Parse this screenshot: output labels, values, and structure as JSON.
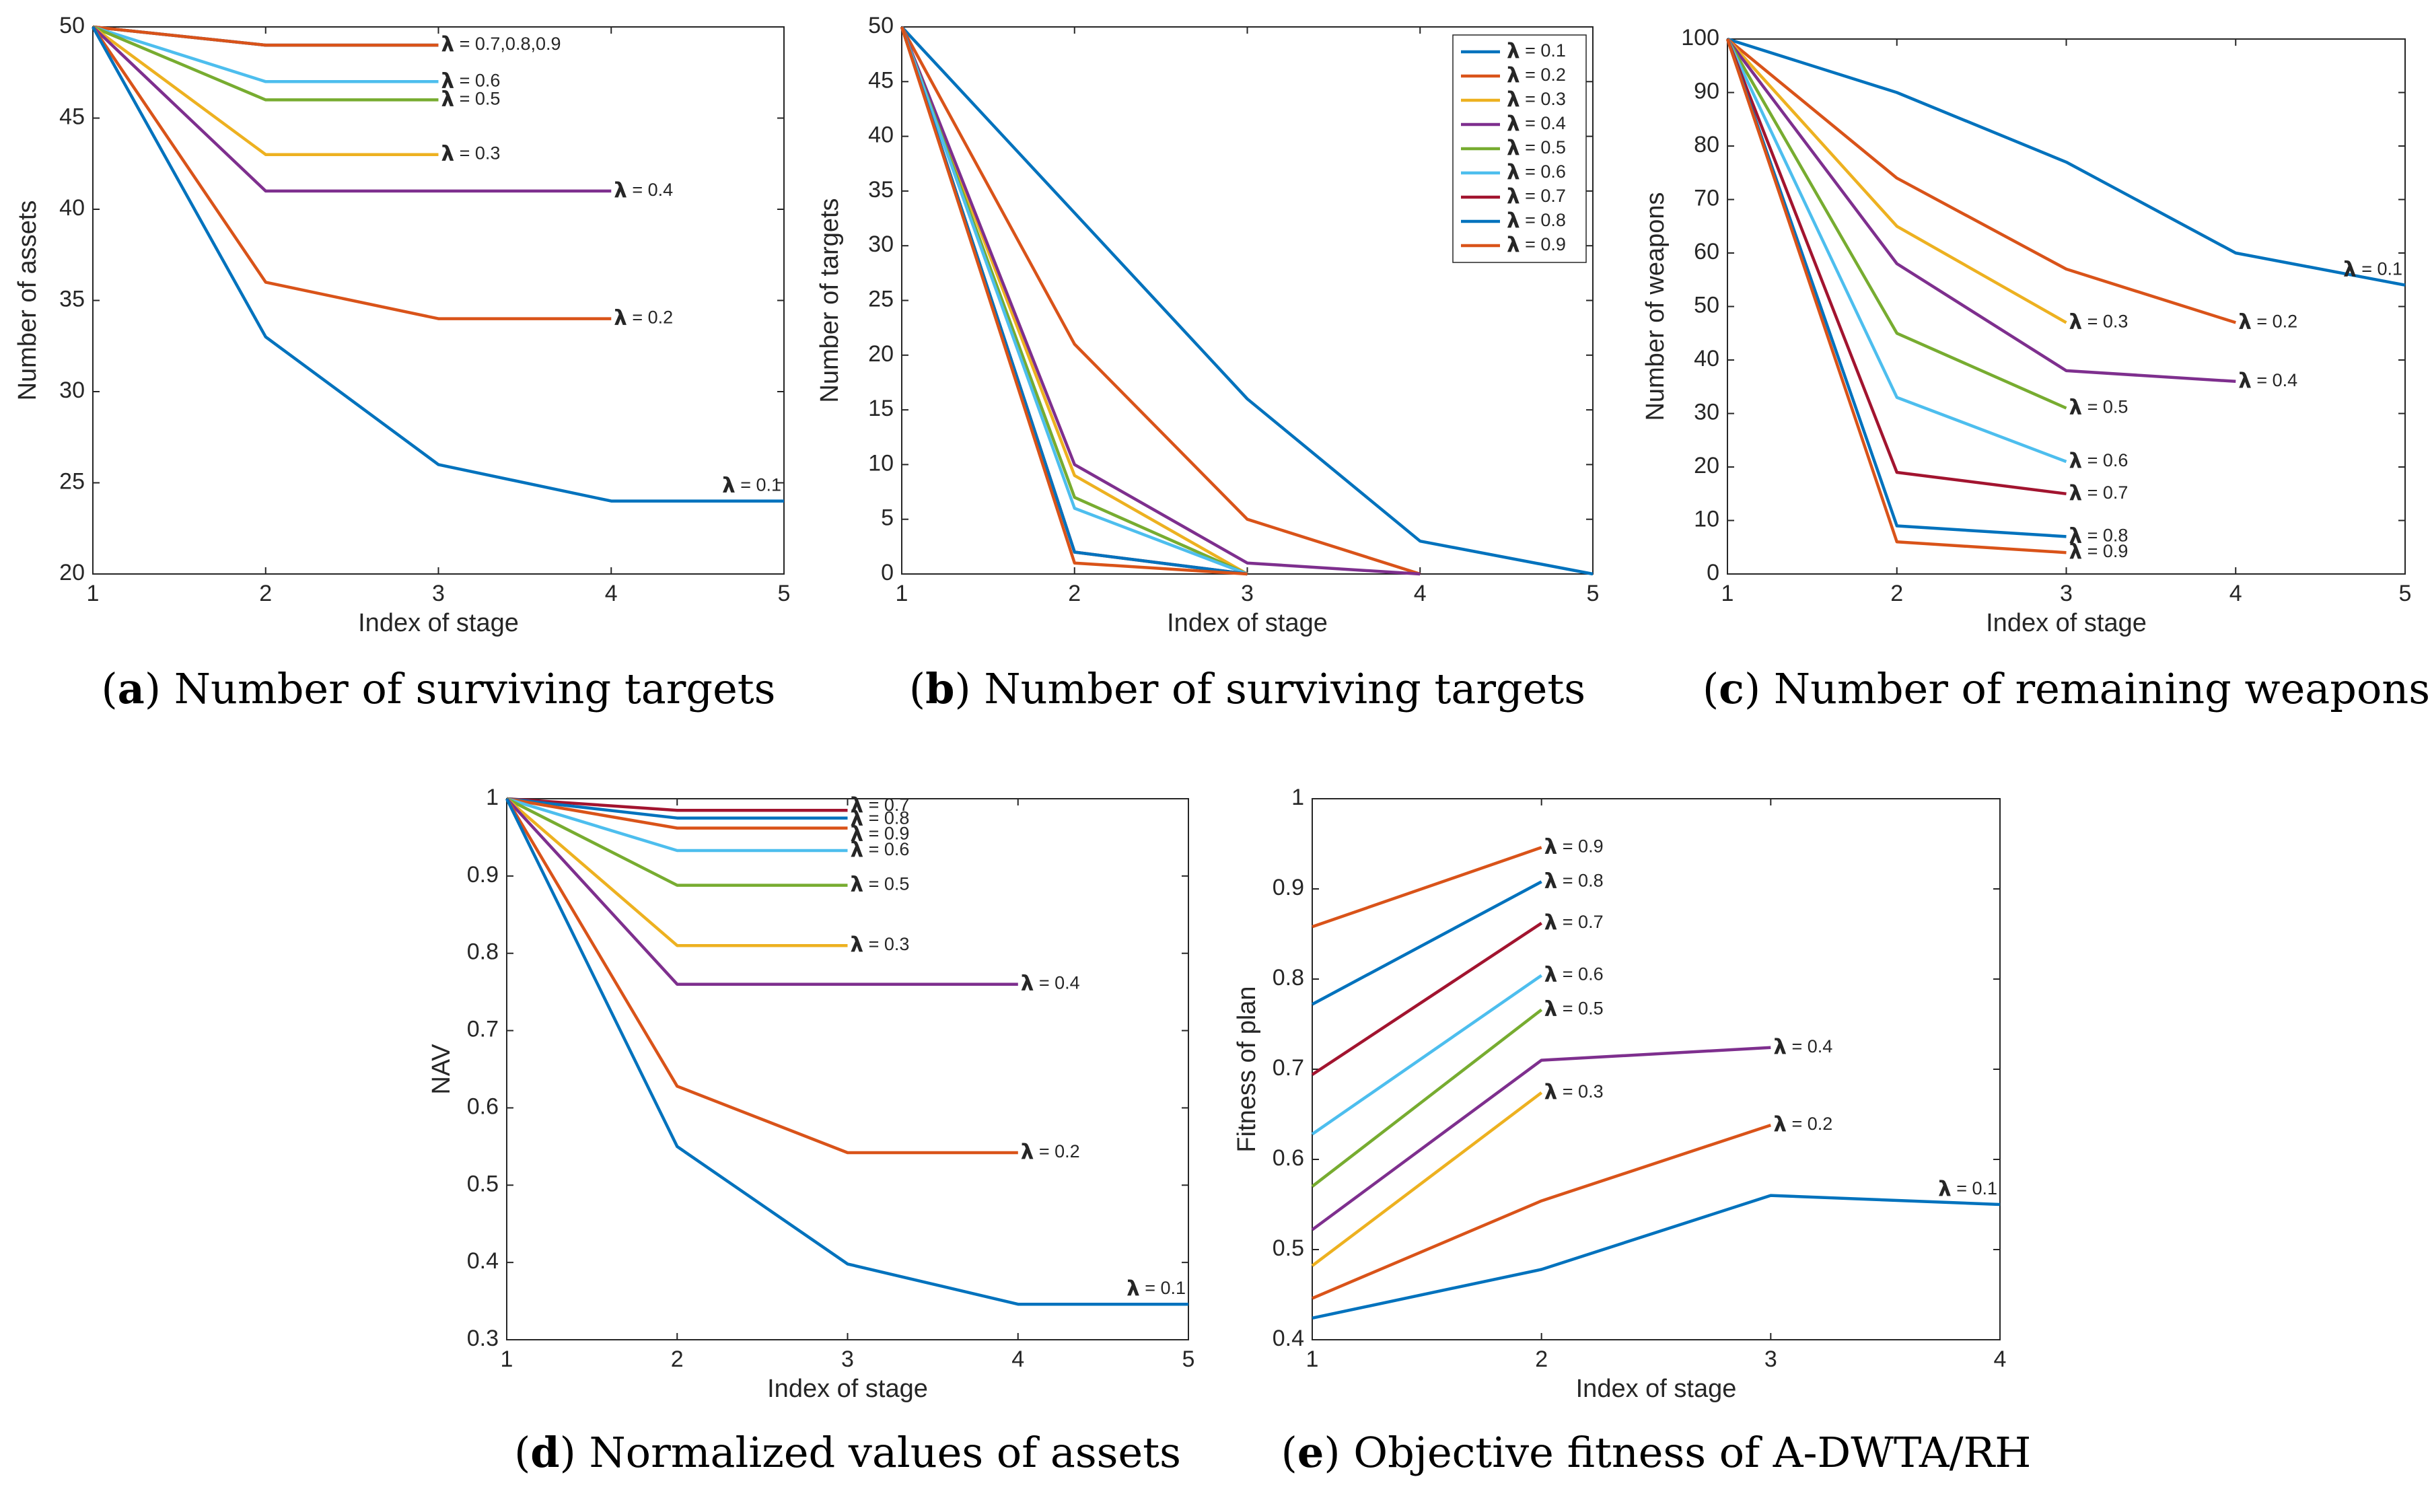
{
  "colors": {
    "0.1": "#0072BD",
    "0.2": "#D95319",
    "0.3": "#EDB120",
    "0.4": "#7E2F8E",
    "0.5": "#77AC30",
    "0.6": "#4DBEEE",
    "0.7": "#A2142F",
    "0.8": "#0072BD",
    "0.9": "#D95319"
  },
  "chart_data": [
    {
      "id": "a",
      "type": "line",
      "caption_letter": "a",
      "caption_text": " Number of surviving targets",
      "xlabel": "Index of stage",
      "ylabel": "Number of assets",
      "xlim": [
        1,
        5
      ],
      "ylim": [
        20,
        50
      ],
      "xticks": [
        1,
        2,
        3,
        4,
        5
      ],
      "yticks": [
        20,
        25,
        30,
        35,
        40,
        45,
        50
      ],
      "legend": null,
      "series": [
        {
          "key": "0.7",
          "name": "λ = 0.7",
          "x": [
            1,
            2,
            3
          ],
          "y": [
            50,
            49,
            49
          ],
          "label": null
        },
        {
          "key": "0.8",
          "name": "λ = 0.8",
          "x": [
            1,
            2,
            3
          ],
          "y": [
            50,
            49,
            49
          ],
          "label": null
        },
        {
          "key": "0.9",
          "name": "λ = 0.9",
          "x": [
            1,
            2,
            3
          ],
          "y": [
            50,
            49,
            49
          ],
          "label": "= 0.7,0.8,0.9",
          "label_pos": "end"
        },
        {
          "key": "0.6",
          "name": "λ = 0.6",
          "x": [
            1,
            2,
            3
          ],
          "y": [
            50,
            47,
            47
          ],
          "label": "= 0.6",
          "label_pos": "end"
        },
        {
          "key": "0.5",
          "name": "λ = 0.5",
          "x": [
            1,
            2,
            3
          ],
          "y": [
            50,
            46,
            46
          ],
          "label": "= 0.5",
          "label_pos": "end"
        },
        {
          "key": "0.3",
          "name": "λ = 0.3",
          "x": [
            1,
            2,
            3
          ],
          "y": [
            50,
            43,
            43
          ],
          "label": "= 0.3",
          "label_pos": "end"
        },
        {
          "key": "0.4",
          "name": "λ = 0.4",
          "x": [
            1,
            2,
            3,
            4
          ],
          "y": [
            50,
            41,
            41,
            41
          ],
          "label": "= 0.4",
          "label_pos": "end"
        },
        {
          "key": "0.2",
          "name": "λ = 0.2",
          "x": [
            1,
            2,
            3,
            4
          ],
          "y": [
            50,
            36,
            34,
            34
          ],
          "label": "= 0.2",
          "label_pos": "end"
        },
        {
          "key": "0.1",
          "name": "λ = 0.1",
          "x": [
            1,
            2,
            3,
            4,
            5
          ],
          "y": [
            50,
            33,
            26,
            24,
            24
          ],
          "label": "= 0.1",
          "label_pos": "above-end"
        }
      ]
    },
    {
      "id": "b",
      "type": "line",
      "caption_letter": "b",
      "caption_text": " Number of surviving targets",
      "xlabel": "Index of stage",
      "ylabel": "Number of targets",
      "xlim": [
        1,
        5
      ],
      "ylim": [
        0,
        50
      ],
      "xticks": [
        1,
        2,
        3,
        4,
        5
      ],
      "yticks": [
        0,
        5,
        10,
        15,
        20,
        25,
        30,
        35,
        40,
        45,
        50
      ],
      "legend": "top-right",
      "series": [
        {
          "key": "0.1",
          "name": "= 0.1",
          "x": [
            1,
            2,
            3,
            4,
            5
          ],
          "y": [
            50,
            33,
            16,
            3,
            0
          ],
          "label": null
        },
        {
          "key": "0.2",
          "name": "= 0.2",
          "x": [
            1,
            2,
            3,
            4
          ],
          "y": [
            50,
            21,
            5,
            0
          ],
          "label": null
        },
        {
          "key": "0.3",
          "name": "= 0.3",
          "x": [
            1,
            2,
            3
          ],
          "y": [
            50,
            9,
            0
          ],
          "label": null
        },
        {
          "key": "0.4",
          "name": "= 0.4",
          "x": [
            1,
            2,
            3,
            4
          ],
          "y": [
            50,
            10,
            1,
            0
          ],
          "label": null
        },
        {
          "key": "0.5",
          "name": "= 0.5",
          "x": [
            1,
            2,
            3
          ],
          "y": [
            50,
            7,
            0
          ],
          "label": null
        },
        {
          "key": "0.6",
          "name": "= 0.6",
          "x": [
            1,
            2,
            3
          ],
          "y": [
            50,
            6,
            0
          ],
          "label": null
        },
        {
          "key": "0.7",
          "name": "= 0.7",
          "x": [
            1,
            2,
            3
          ],
          "y": [
            50,
            2,
            0
          ],
          "label": null
        },
        {
          "key": "0.8",
          "name": "= 0.8",
          "x": [
            1,
            2,
            3
          ],
          "y": [
            50,
            2,
            0
          ],
          "label": null
        },
        {
          "key": "0.9",
          "name": "= 0.9",
          "x": [
            1,
            2,
            3
          ],
          "y": [
            50,
            1,
            0
          ],
          "label": null
        }
      ]
    },
    {
      "id": "c",
      "type": "line",
      "caption_letter": "c",
      "caption_text": " Number of remaining weapons",
      "xlabel": "Index of stage",
      "ylabel": "Number of weapons",
      "xlim": [
        1,
        5
      ],
      "ylim": [
        0,
        100
      ],
      "xticks": [
        1,
        2,
        3,
        4,
        5
      ],
      "yticks": [
        0,
        10,
        20,
        30,
        40,
        50,
        60,
        70,
        80,
        90,
        100
      ],
      "legend": null,
      "series": [
        {
          "key": "0.1",
          "name": "λ = 0.1",
          "x": [
            1,
            2,
            3,
            4,
            5
          ],
          "y": [
            100,
            90,
            77,
            60,
            54
          ],
          "label": "= 0.1",
          "label_pos": "above-end"
        },
        {
          "key": "0.2",
          "name": "λ = 0.2",
          "x": [
            1,
            2,
            3,
            4
          ],
          "y": [
            100,
            74,
            57,
            47
          ],
          "label": "= 0.2",
          "label_pos": "end"
        },
        {
          "key": "0.3",
          "name": "λ = 0.3",
          "x": [
            1,
            2,
            3
          ],
          "y": [
            100,
            65,
            47
          ],
          "label": "= 0.3",
          "label_pos": "end"
        },
        {
          "key": "0.4",
          "name": "λ = 0.4",
          "x": [
            1,
            2,
            3,
            4
          ],
          "y": [
            100,
            58,
            38,
            36
          ],
          "label": "= 0.4",
          "label_pos": "end"
        },
        {
          "key": "0.5",
          "name": "λ = 0.5",
          "x": [
            1,
            2,
            3
          ],
          "y": [
            100,
            45,
            31
          ],
          "label": "= 0.5",
          "label_pos": "end"
        },
        {
          "key": "0.6",
          "name": "λ = 0.6",
          "x": [
            1,
            2,
            3
          ],
          "y": [
            100,
            33,
            21
          ],
          "label": "= 0.6",
          "label_pos": "end"
        },
        {
          "key": "0.7",
          "name": "λ = 0.7",
          "x": [
            1,
            2,
            3
          ],
          "y": [
            100,
            19,
            15
          ],
          "label": "= 0.7",
          "label_pos": "end"
        },
        {
          "key": "0.8",
          "name": "λ = 0.8",
          "x": [
            1,
            2,
            3
          ],
          "y": [
            100,
            9,
            7
          ],
          "label": "= 0.8",
          "label_pos": "end"
        },
        {
          "key": "0.9",
          "name": "λ = 0.9",
          "x": [
            1,
            2,
            3
          ],
          "y": [
            100,
            6,
            4
          ],
          "label": "= 0.9",
          "label_pos": "end"
        }
      ]
    },
    {
      "id": "d",
      "type": "line",
      "caption_letter": "d",
      "caption_text": " Normalized values of assets",
      "xlabel": "Index of stage",
      "ylabel": "NAV",
      "xlim": [
        1,
        5
      ],
      "ylim": [
        0.3,
        1
      ],
      "xticks": [
        1,
        2,
        3,
        4,
        5
      ],
      "yticks": [
        0.3,
        0.4,
        0.5,
        0.6,
        0.7,
        0.8,
        0.9,
        1
      ],
      "legend": null,
      "series": [
        {
          "key": "0.7",
          "name": "λ = 0.7",
          "x": [
            1,
            2,
            3
          ],
          "y": [
            1,
            0.985,
            0.985
          ],
          "label": "= 0.7",
          "label_pos": "end",
          "label_dy": -6
        },
        {
          "key": "0.8",
          "name": "λ = 0.8",
          "x": [
            1,
            2,
            3
          ],
          "y": [
            1,
            0.975,
            0.975
          ],
          "label": "= 0.8",
          "label_pos": "end",
          "label_dy": 2
        },
        {
          "key": "0.9",
          "name": "λ = 0.9",
          "x": [
            1,
            2,
            3
          ],
          "y": [
            1,
            0.962,
            0.962
          ],
          "label": "= 0.9",
          "label_pos": "end",
          "label_dy": 10
        },
        {
          "key": "0.6",
          "name": "λ = 0.6",
          "x": [
            1,
            2,
            3
          ],
          "y": [
            1,
            0.933,
            0.933
          ],
          "label": "= 0.6",
          "label_pos": "end"
        },
        {
          "key": "0.5",
          "name": "λ = 0.5",
          "x": [
            1,
            2,
            3
          ],
          "y": [
            1,
            0.888,
            0.888
          ],
          "label": "= 0.5",
          "label_pos": "end"
        },
        {
          "key": "0.3",
          "name": "λ = 0.3",
          "x": [
            1,
            2,
            3
          ],
          "y": [
            1,
            0.81,
            0.81
          ],
          "label": "= 0.3",
          "label_pos": "end"
        },
        {
          "key": "0.4",
          "name": "λ = 0.4",
          "x": [
            1,
            2,
            3,
            4
          ],
          "y": [
            1,
            0.76,
            0.76,
            0.76
          ],
          "label": "= 0.4",
          "label_pos": "end"
        },
        {
          "key": "0.2",
          "name": "λ = 0.2",
          "x": [
            1,
            2,
            3,
            4
          ],
          "y": [
            1,
            0.628,
            0.542,
            0.542
          ],
          "label": "= 0.2",
          "label_pos": "end"
        },
        {
          "key": "0.1",
          "name": "λ = 0.1",
          "x": [
            1,
            2,
            3,
            4,
            5
          ],
          "y": [
            1,
            0.55,
            0.398,
            0.346,
            0.346
          ],
          "label": "= 0.1",
          "label_pos": "above-end"
        }
      ]
    },
    {
      "id": "e",
      "type": "line",
      "caption_letter": "e",
      "caption_text": " Objective fitness of A-DWTA/RH",
      "xlabel": "Index of stage",
      "ylabel": "Fitness of plan",
      "xlim": [
        1,
        4
      ],
      "ylim": [
        0.4,
        1
      ],
      "xticks": [
        1,
        2,
        3,
        4
      ],
      "yticks": [
        0.4,
        0.5,
        0.6,
        0.7,
        0.8,
        0.9,
        1
      ],
      "legend": null,
      "series": [
        {
          "key": "0.9",
          "name": "λ = 0.9",
          "x": [
            1,
            2
          ],
          "y": [
            0.858,
            0.946
          ],
          "label": "= 0.9",
          "label_pos": "end"
        },
        {
          "key": "0.8",
          "name": "λ = 0.8",
          "x": [
            1,
            2
          ],
          "y": [
            0.772,
            0.908
          ],
          "label": "= 0.8",
          "label_pos": "end"
        },
        {
          "key": "0.7",
          "name": "λ = 0.7",
          "x": [
            1,
            2
          ],
          "y": [
            0.694,
            0.862
          ],
          "label": "= 0.7",
          "label_pos": "end"
        },
        {
          "key": "0.6",
          "name": "λ = 0.6",
          "x": [
            1,
            2
          ],
          "y": [
            0.628,
            0.804
          ],
          "label": "= 0.6",
          "label_pos": "end"
        },
        {
          "key": "0.5",
          "name": "λ = 0.5",
          "x": [
            1,
            2
          ],
          "y": [
            0.57,
            0.766
          ],
          "label": "= 0.5",
          "label_pos": "end"
        },
        {
          "key": "0.4",
          "name": "λ = 0.4",
          "x": [
            1,
            2,
            3
          ],
          "y": [
            0.522,
            0.71,
            0.724
          ],
          "label": "= 0.4",
          "label_pos": "end"
        },
        {
          "key": "0.3",
          "name": "λ = 0.3",
          "x": [
            1,
            2
          ],
          "y": [
            0.482,
            0.674
          ],
          "label": "= 0.3",
          "label_pos": "end"
        },
        {
          "key": "0.2",
          "name": "λ = 0.2",
          "x": [
            1,
            2,
            3
          ],
          "y": [
            0.446,
            0.554,
            0.638
          ],
          "label": "= 0.2",
          "label_pos": "end"
        },
        {
          "key": "0.1",
          "name": "λ = 0.1",
          "x": [
            1,
            2,
            3,
            4
          ],
          "y": [
            0.424,
            0.478,
            0.56,
            0.55
          ],
          "label": "= 0.1",
          "label_pos": "above-end"
        }
      ]
    }
  ]
}
